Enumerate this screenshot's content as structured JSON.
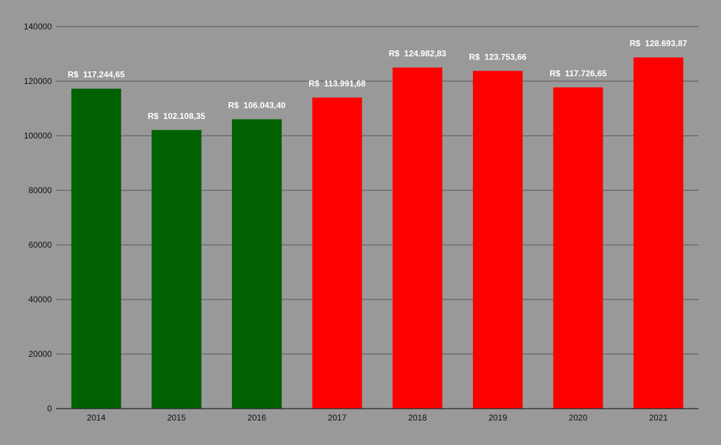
{
  "chart_data": {
    "type": "bar",
    "title": "",
    "xlabel": "",
    "ylabel": "",
    "categories": [
      "2014",
      "2015",
      "2016",
      "2017",
      "2018",
      "2019",
      "2020",
      "2021"
    ],
    "values": [
      117244.65,
      102108.35,
      106043.4,
      113991.68,
      124982.83,
      123753.66,
      117726.65,
      128693.87
    ],
    "data_labels": [
      "R$  117.244,65",
      "R$  102.108,35",
      "R$  106.043,40",
      "R$  113.991,68",
      "R$  124.982,83",
      "R$  123.753,66",
      "R$  117.726,65",
      "R$  128.693,87"
    ],
    "bar_colors": [
      "#006100",
      "#006100",
      "#006100",
      "#ff0000",
      "#ff0000",
      "#ff0000",
      "#ff0000",
      "#ff0000"
    ],
    "ylim": [
      0,
      140000
    ],
    "yticks": [
      0,
      20000,
      40000,
      60000,
      80000,
      100000,
      120000,
      140000
    ],
    "ytick_labels": [
      "0",
      "20000",
      "40000",
      "60000",
      "80000",
      "100000",
      "120000",
      "140000"
    ],
    "grid": true,
    "legend": "none",
    "background_color": "#999999",
    "grid_color": "#555555"
  }
}
